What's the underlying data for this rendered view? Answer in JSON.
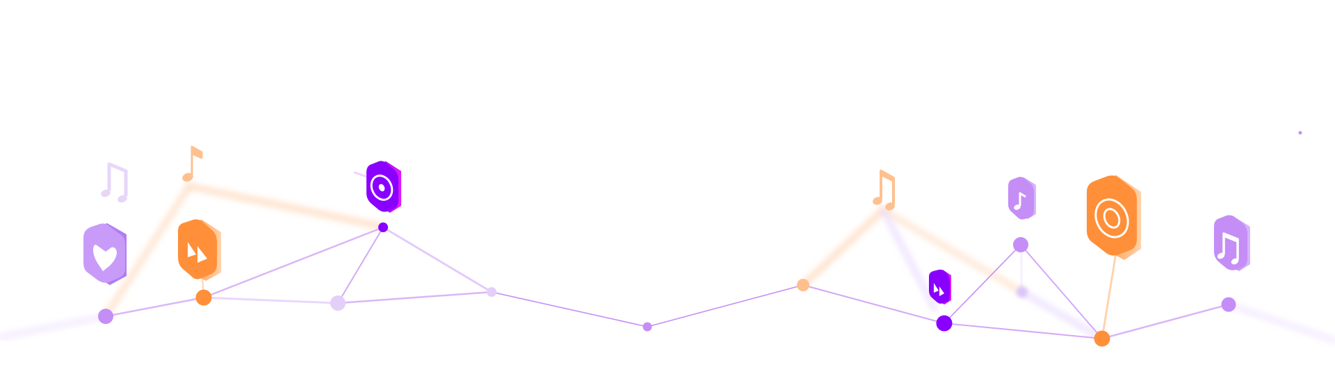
{
  "colors": {
    "background": "#ffffff",
    "primary_purple": "#8a00ff",
    "light_purple": "#c58df6",
    "pale_purple": "#e3d0f8",
    "orange": "#ff8f38",
    "light_orange": "#ffc08f",
    "magenta": "#e01cff"
  },
  "icons": [
    {
      "name": "heart-tile-icon",
      "color": "light_purple"
    },
    {
      "name": "play-tile-icon",
      "color": "orange"
    },
    {
      "name": "disc-tile-icon",
      "color": "primary_purple"
    },
    {
      "name": "small-play-tile-icon",
      "color": "primary_purple"
    },
    {
      "name": "note-tile-icon",
      "color": "light_purple"
    },
    {
      "name": "speaker-tile-icon",
      "color": "orange"
    },
    {
      "name": "double-note-tile-icon",
      "color": "light_purple"
    },
    {
      "name": "music-note-icon",
      "color": "light_orange"
    },
    {
      "name": "double-music-note-icon",
      "color": "pale_purple"
    }
  ]
}
